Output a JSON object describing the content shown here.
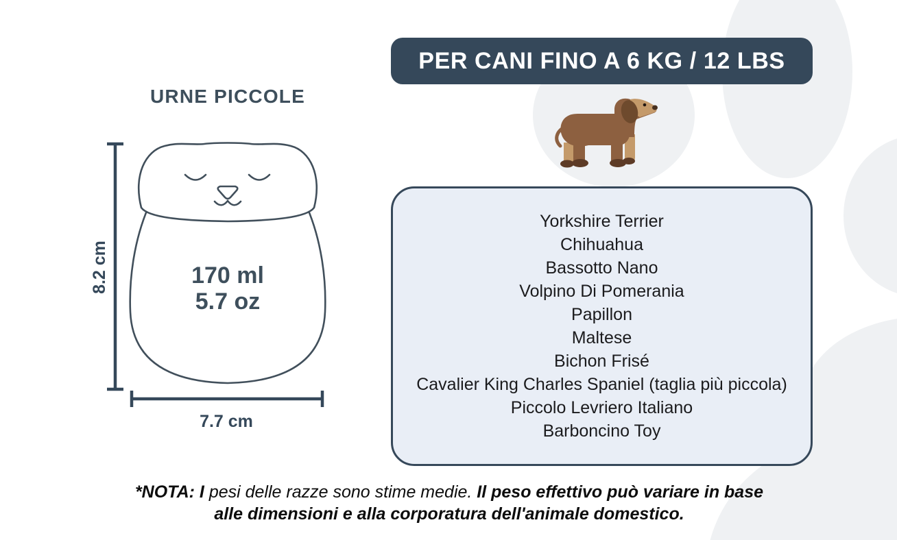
{
  "infographic": {
    "banner": "PER CANI FINO A 6 KG / 12 LBS",
    "urn": {
      "title": "URNE PICCOLE",
      "capacity_ml": "170 ml",
      "capacity_oz": "5.7 oz",
      "height_label": "8.2 cm",
      "width_label": "7.7 cm"
    },
    "breeds": [
      "Yorkshire Terrier",
      "Chihuahua",
      "Bassotto Nano",
      "Volpino Di Pomerania",
      "Papillon",
      "Maltese",
      "Bichon Frisé",
      "Cavalier King Charles Spaniel (taglia più piccola)",
      "Piccolo Levriero Italiano",
      "Barboncino Toy"
    ],
    "note": {
      "bold_prefix": "*NOTA: I",
      "regular_middle": " pesi delle razze sono stime medie. ",
      "bold_line1": "Il peso effettivo può variare in base",
      "bold_line2": "alle dimensioni e alla corporatura dell'animale domestico."
    },
    "colors": {
      "slate": "#35485a",
      "soft_slate": "#3e4f5c",
      "box_background": "#e9eef6",
      "breed_text": "#1b1b1d",
      "watermark_gray": "#eff1f3",
      "dog_body_brown": "#8d6040",
      "dog_tan": "#c49a6a",
      "dog_ear_brown": "#6e4a2d",
      "dog_paw_brown": "#5d3b26"
    },
    "icons": {
      "watermark": "paw-print-watermark",
      "dog": "dachshund-icon",
      "urn": "cat-urn-illustration",
      "height_dimension": "vertical-dimension-line",
      "width_dimension": "horizontal-dimension-line"
    }
  }
}
